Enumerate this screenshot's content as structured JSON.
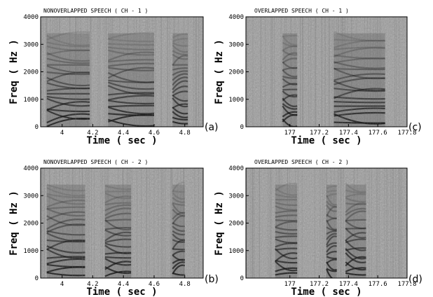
{
  "chart_data": [
    {
      "type": "heatmap",
      "panel": "(a)",
      "title": "NONOVERLAPPED SPEECH   ( CH - 1 )",
      "xlabel": "Time  ( sec )",
      "ylabel": "Freq  ( Hz )",
      "xlim": [
        3.86,
        4.92
      ],
      "ylim": [
        0,
        4000
      ],
      "xticks": [
        4,
        4.2,
        4.4,
        4.6,
        4.8
      ],
      "yticks": [
        0,
        1000,
        2000,
        3000,
        4000
      ],
      "colormap": "grayscale",
      "voiced_regions_sec": [
        [
          3.9,
          4.18
        ],
        [
          4.3,
          4.6
        ],
        [
          4.72,
          4.82
        ]
      ]
    },
    {
      "type": "heatmap",
      "panel": "(c)",
      "title": "OVERLAPPED SPEECH   ( CH - 1 )",
      "xlabel": "Time  ( sec )",
      "ylabel": "Freq  ( Hz )",
      "xlim": [
        176.7,
        177.8
      ],
      "ylim": [
        0,
        4000
      ],
      "xticks": [
        177,
        177.2,
        177.4,
        177.6,
        177.8
      ],
      "yticks": [
        0,
        1000,
        2000,
        3000,
        4000
      ],
      "colormap": "grayscale",
      "voiced_regions_sec": [
        [
          176.95,
          177.05
        ],
        [
          177.3,
          177.65
        ]
      ]
    },
    {
      "type": "heatmap",
      "panel": "(b)",
      "title": "NONOVERLAPPED SPEECH   ( CH - 2 )",
      "xlabel": "Time  ( sec )",
      "ylabel": "Freq  ( Hz )",
      "xlim": [
        3.86,
        4.92
      ],
      "ylim": [
        0,
        4000
      ],
      "xticks": [
        4,
        4.2,
        4.4,
        4.6,
        4.8
      ],
      "yticks": [
        0,
        1000,
        2000,
        3000,
        4000
      ],
      "colormap": "grayscale",
      "voiced_regions_sec": [
        [
          3.9,
          4.15
        ],
        [
          4.28,
          4.45
        ],
        [
          4.72,
          4.8
        ]
      ]
    },
    {
      "type": "heatmap",
      "panel": "(d)",
      "title": "OVERLAPPED SPEECH   ( CH - 2 )",
      "xlabel": "Time  ( sec )",
      "ylabel": "Freq  ( Hz )",
      "xlim": [
        176.7,
        177.8
      ],
      "ylim": [
        0,
        4000
      ],
      "xticks": [
        177,
        177.2,
        177.4,
        177.6,
        177.8
      ],
      "yticks": [
        0,
        1000,
        2000,
        3000,
        4000
      ],
      "colormap": "grayscale",
      "voiced_regions_sec": [
        [
          176.9,
          177.05
        ],
        [
          177.25,
          177.32
        ],
        [
          177.38,
          177.52
        ]
      ]
    }
  ]
}
